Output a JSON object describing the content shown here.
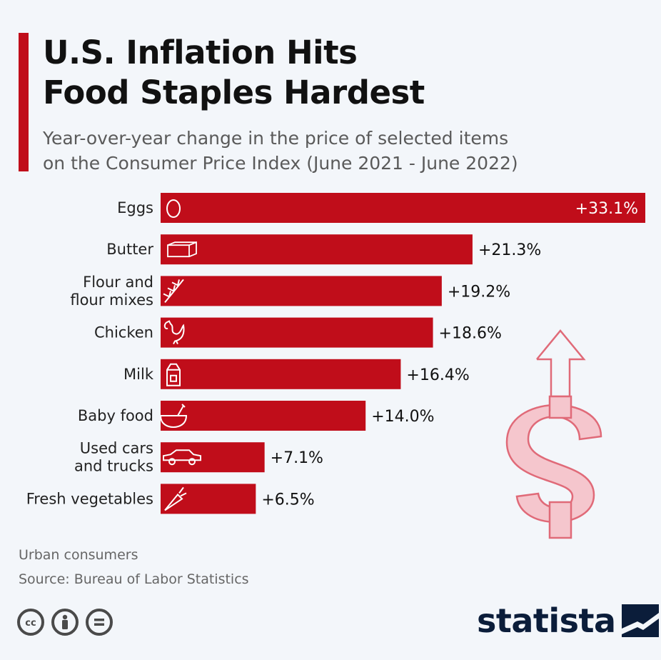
{
  "header": {
    "title": "U.S. Inflation Hits\nFood Staples Hardest",
    "subtitle": "Year-over-year change in the price of selected items\non the Consumer Price Index (June 2021 - June 2022)"
  },
  "chart_data": {
    "type": "bar",
    "orientation": "horizontal",
    "categories": [
      "Eggs",
      "Butter",
      "Flour and\nflour mixes",
      "Chicken",
      "Milk",
      "Baby food",
      "Used cars\nand trucks",
      "Fresh vegetables"
    ],
    "values": [
      33.1,
      21.3,
      19.2,
      18.6,
      16.4,
      14.0,
      7.1,
      6.5
    ],
    "value_labels": [
      "+33.1%",
      "+21.3%",
      "+19.2%",
      "+18.6%",
      "+16.4%",
      "+14.0%",
      "+7.1%",
      "+6.5%"
    ],
    "icons": [
      "egg-icon",
      "butter-icon",
      "wheat-icon",
      "chicken-icon",
      "milk-carton-icon",
      "baby-food-bowl-icon",
      "car-icon",
      "carrot-icon"
    ],
    "xlim": [
      0,
      33.1
    ],
    "bar_color": "#c00d1a",
    "title": "U.S. Inflation Hits Food Staples Hardest",
    "xlabel": "",
    "ylabel": ""
  },
  "footer": {
    "note": "Urban consumers",
    "source": "Source: Bureau of Labor Statistics",
    "brand": "statista"
  },
  "colors": {
    "accent": "#c00d1a",
    "background": "#f3f6fa",
    "brand": "#0b1d3a"
  }
}
